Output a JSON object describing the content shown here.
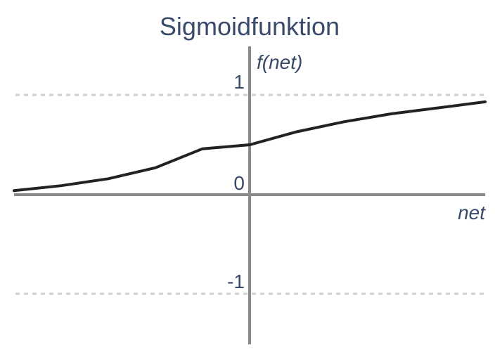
{
  "chart_data": {
    "type": "line",
    "title": "Sigmoidfunktion",
    "xlabel": "net",
    "ylabel": "f(net)",
    "y_ticks": [
      "1",
      "0",
      "-1"
    ],
    "ylim": [
      -1.5,
      1.35
    ],
    "xlim": [
      -5,
      5
    ],
    "reference_lines_y": [
      1,
      -1
    ],
    "series": [
      {
        "x": [
          -5,
          -4,
          -3,
          -2,
          -1,
          0,
          1,
          2,
          3,
          4,
          5
        ],
        "values": [
          0.04,
          0.09,
          0.16,
          0.27,
          0.46,
          0.5,
          0.63,
          0.73,
          0.81,
          0.87,
          0.93
        ]
      }
    ]
  }
}
